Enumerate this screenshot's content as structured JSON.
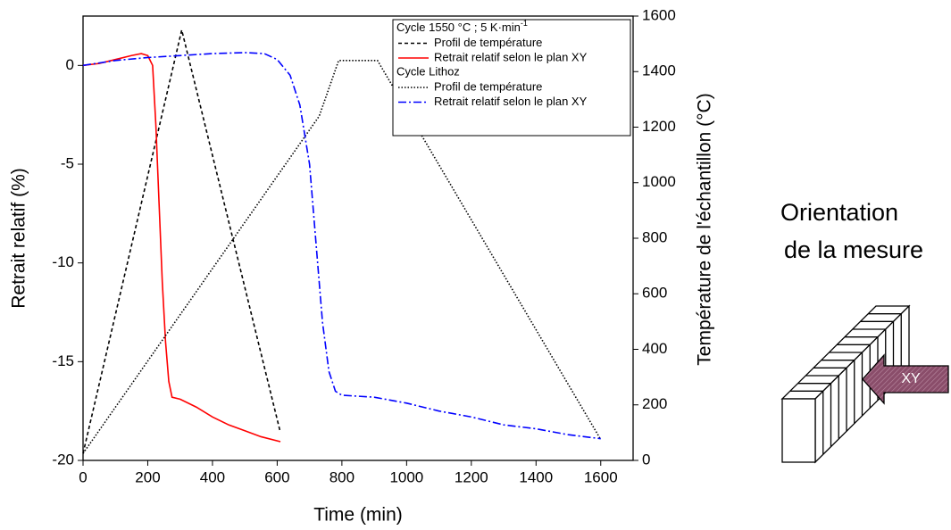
{
  "chart_data": {
    "type": "line",
    "xlabel": "Time (min)",
    "ylabel": "Retrait relatif (%)",
    "y2label": "Température de l'échantillon (°C)",
    "xlim": [
      0,
      1700
    ],
    "xticks": [
      0,
      200,
      400,
      600,
      800,
      1000,
      1200,
      1400,
      1600
    ],
    "ylim": [
      -20,
      2.5
    ],
    "yticks": [
      0,
      -5,
      -10,
      -15,
      -20
    ],
    "y2lim": [
      0,
      1600
    ],
    "y2ticks": [
      0,
      200,
      400,
      600,
      800,
      1000,
      1200,
      1400,
      1600
    ],
    "legend": "upper right",
    "groups": [
      {
        "title": "Cycle 1550 °C ; 5 K·min",
        "title_sup": "-1",
        "series": [
          {
            "name": "Profil de température",
            "color": "#000000",
            "dash": "4,3",
            "axis": "y2",
            "x": [
              0,
              305,
              610
            ],
            "values": [
              25,
              1550,
              100
            ]
          },
          {
            "name": "Retrait relatif selon le plan XY",
            "color": "#ff0000",
            "dash": "none",
            "x": [
              0,
              50,
              100,
              150,
              180,
              200,
              215,
              225,
              235,
              245,
              255,
              265,
              275,
              300,
              350,
              400,
              450,
              500,
              550,
              610
            ],
            "values": [
              0,
              0.1,
              0.3,
              0.5,
              0.6,
              0.5,
              0,
              -3,
              -7,
              -11,
              -14,
              -16,
              -16.8,
              -16.9,
              -17.3,
              -17.8,
              -18.2,
              -18.5,
              -18.8,
              -19.05
            ]
          }
        ]
      },
      {
        "title": "Cycle Lithoz",
        "series": [
          {
            "name": "Profil de température",
            "color": "#000000",
            "dash": "1.5,2",
            "axis": "y2",
            "x": [
              0,
              730,
              790,
              910,
              1600
            ],
            "values": [
              25,
              1240,
              1440,
              1440,
              75
            ]
          },
          {
            "name": "Retrait relatif selon le plan XY",
            "color": "#0000ff",
            "dash": "9,3,2,3",
            "x": [
              0,
              100,
              200,
              300,
              400,
              500,
              560,
              600,
              640,
              670,
              700,
              720,
              740,
              760,
              780,
              800,
              900,
              1000,
              1100,
              1200,
              1300,
              1400,
              1500,
              1600
            ],
            "values": [
              0,
              0.25,
              0.4,
              0.5,
              0.6,
              0.65,
              0.6,
              0.3,
              -0.5,
              -2,
              -5,
              -9,
              -13,
              -15.5,
              -16.5,
              -16.7,
              -16.8,
              -17.1,
              -17.5,
              -17.8,
              -18.2,
              -18.4,
              -18.7,
              -18.9
            ]
          }
        ]
      }
    ]
  },
  "diagram": {
    "title_lines": [
      "Orientation",
      "de la mesure"
    ],
    "arrow_label": "XY"
  }
}
